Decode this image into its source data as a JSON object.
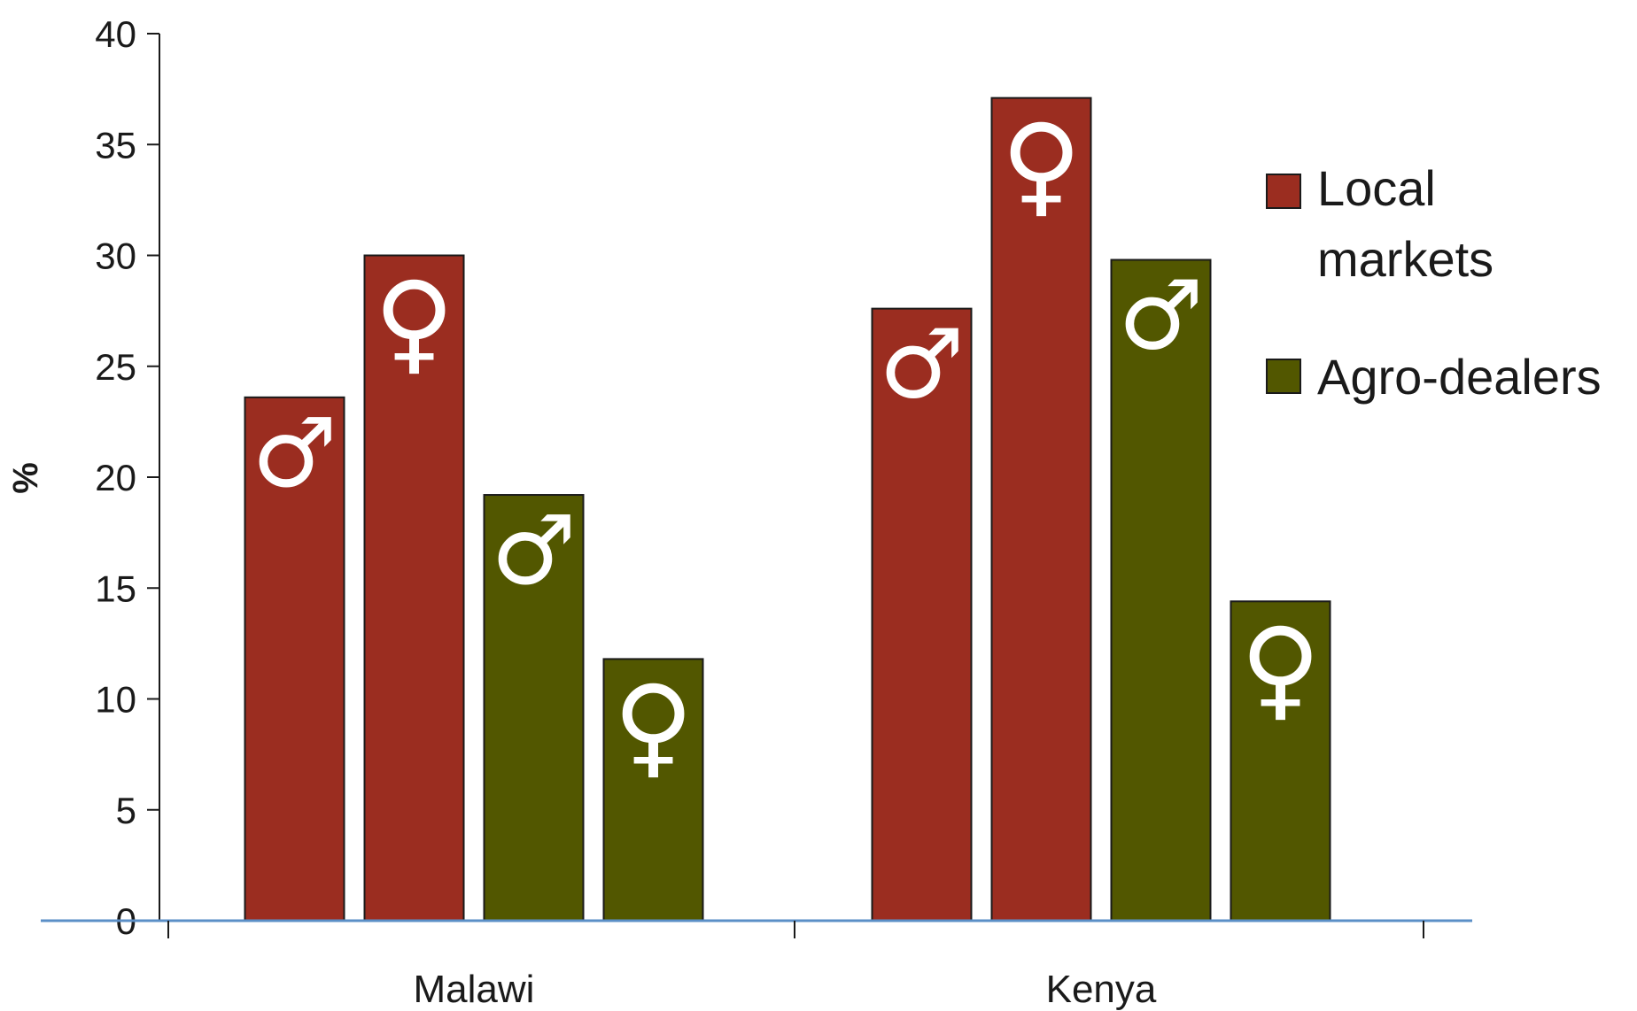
{
  "chart_data": {
    "type": "bar",
    "title": "",
    "xlabel": "",
    "ylabel": "%",
    "ylim": [
      0,
      40
    ],
    "yticks": [
      0,
      5,
      10,
      15,
      20,
      25,
      30,
      35,
      40
    ],
    "categories": [
      "Malawi",
      "Kenya"
    ],
    "bars": [
      {
        "category": "Malawi",
        "series": "Local markets",
        "gender": "male",
        "symbol": "♂",
        "value": 23.6
      },
      {
        "category": "Malawi",
        "series": "Local markets",
        "gender": "female",
        "symbol": "♀",
        "value": 30.0
      },
      {
        "category": "Malawi",
        "series": "Agro-dealers",
        "gender": "male",
        "symbol": "♂",
        "value": 19.2
      },
      {
        "category": "Malawi",
        "series": "Agro-dealers",
        "gender": "female",
        "symbol": "♀",
        "value": 11.8
      },
      {
        "category": "Kenya",
        "series": "Local markets",
        "gender": "male",
        "symbol": "♂",
        "value": 27.6
      },
      {
        "category": "Kenya",
        "series": "Local markets",
        "gender": "female",
        "symbol": "♀",
        "value": 37.1
      },
      {
        "category": "Kenya",
        "series": "Agro-dealers",
        "gender": "male",
        "symbol": "♂",
        "value": 29.8
      },
      {
        "category": "Kenya",
        "series": "Agro-dealers",
        "gender": "female",
        "symbol": "♀",
        "value": 14.4
      }
    ],
    "series": [
      {
        "name": "Local markets",
        "legend_lines": [
          "Local",
          "markets"
        ],
        "color": "#9b2d20"
      },
      {
        "name": "Agro-dealers",
        "legend_lines": [
          "Agro-dealers"
        ],
        "color": "#525700"
      }
    ],
    "legend_position": "right",
    "grid": false,
    "baseline_color": "#5b8fc7"
  }
}
